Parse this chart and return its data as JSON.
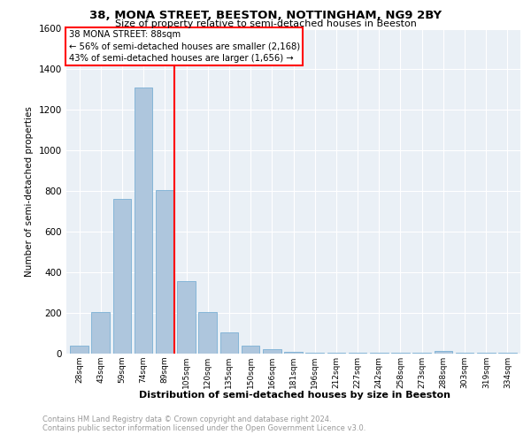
{
  "title": "38, MONA STREET, BEESTON, NOTTINGHAM, NG9 2BY",
  "subtitle": "Size of property relative to semi-detached houses in Beeston",
  "xlabel": "Distribution of semi-detached houses by size in Beeston",
  "ylabel": "Number of semi-detached properties",
  "categories": [
    "28sqm",
    "43sqm",
    "59sqm",
    "74sqm",
    "89sqm",
    "105sqm",
    "120sqm",
    "135sqm",
    "150sqm",
    "166sqm",
    "181sqm",
    "196sqm",
    "212sqm",
    "227sqm",
    "242sqm",
    "258sqm",
    "273sqm",
    "288sqm",
    "303sqm",
    "319sqm",
    "334sqm"
  ],
  "values": [
    40,
    205,
    760,
    1310,
    805,
    355,
    205,
    105,
    40,
    20,
    10,
    5,
    3,
    3,
    3,
    3,
    3,
    15,
    3,
    3,
    3
  ],
  "bar_color": "#aec6dd",
  "bar_edge_color": "#7aafd4",
  "marker_index": 4,
  "marker_label": "38 MONA STREET: 88sqm",
  "annotation_line1": "← 56% of semi-detached houses are smaller (2,168)",
  "annotation_line2": "43% of semi-detached houses are larger (1,656) →",
  "marker_color": "red",
  "ylim": [
    0,
    1600
  ],
  "yticks": [
    0,
    200,
    400,
    600,
    800,
    1000,
    1200,
    1400,
    1600
  ],
  "footer_line1": "Contains HM Land Registry data © Crown copyright and database right 2024.",
  "footer_line2": "Contains public sector information licensed under the Open Government Licence v3.0.",
  "plot_bg_color": "#eaf0f6"
}
